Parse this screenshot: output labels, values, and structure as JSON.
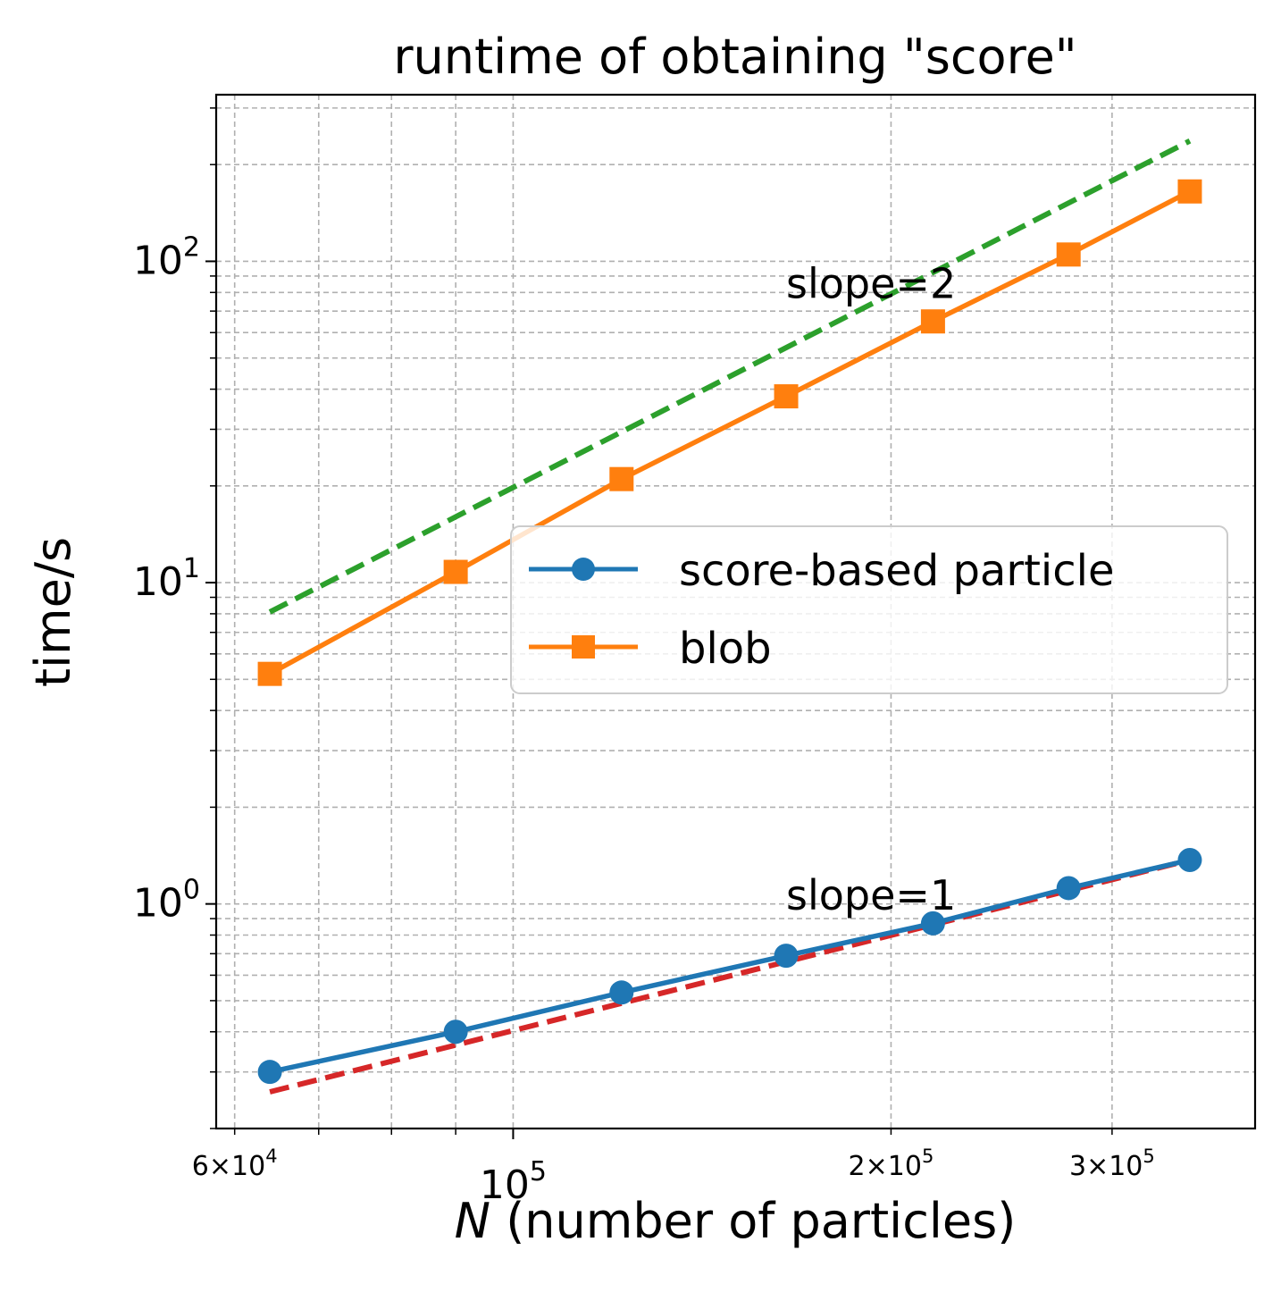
{
  "chart_data": {
    "type": "line",
    "title": "runtime of obtaining \"score\"",
    "xlabel_var": "N",
    "xlabel_rest": " (number of particles)",
    "ylabel": "time/s",
    "xscale": "log",
    "yscale": "log",
    "xlim": [
      58000,
      390000
    ],
    "ylim": [
      0.2,
      330
    ],
    "grid": true,
    "grid_minor": true,
    "legend_position": "center-right",
    "x_major_ticks": [
      {
        "value": 100000,
        "base": "10",
        "exp": "5"
      }
    ],
    "x_minor_labeled_ticks": [
      {
        "value": 60000,
        "mant": "6",
        "base": "10",
        "exp": "4"
      },
      {
        "value": 200000,
        "mant": "2",
        "base": "10",
        "exp": "5"
      },
      {
        "value": 300000,
        "mant": "3",
        "base": "10",
        "exp": "5"
      }
    ],
    "y_major_ticks": [
      {
        "value": 1,
        "base": "10",
        "exp": "0"
      },
      {
        "value": 10,
        "base": "10",
        "exp": "1"
      },
      {
        "value": 100,
        "base": "10",
        "exp": "2"
      }
    ],
    "x": [
      64000,
      90000,
      122000,
      165000,
      216000,
      277000,
      346000
    ],
    "series": [
      {
        "name": "score-based particle",
        "color": "#1f77b4",
        "marker": "circle",
        "values": [
          0.3,
          0.4,
          0.53,
          0.69,
          0.87,
          1.12,
          1.37
        ]
      },
      {
        "name": "blob",
        "color": "#ff7f0e",
        "marker": "square",
        "values": [
          5.2,
          10.8,
          21,
          38,
          65,
          105,
          165
        ]
      }
    ],
    "reference_lines": [
      {
        "label": "slope=2",
        "color": "#2ca02c",
        "dash": true,
        "x": [
          64000,
          346000
        ],
        "values": [
          8.1,
          237
        ],
        "label_at": {
          "x": 165000,
          "y": 77
        }
      },
      {
        "label": "slope=1",
        "color": "#d62728",
        "dash": true,
        "x": [
          64000,
          346000
        ],
        "values": [
          0.26,
          1.37
        ],
        "label_at": {
          "x": 165000,
          "y": 0.96
        }
      }
    ]
  }
}
